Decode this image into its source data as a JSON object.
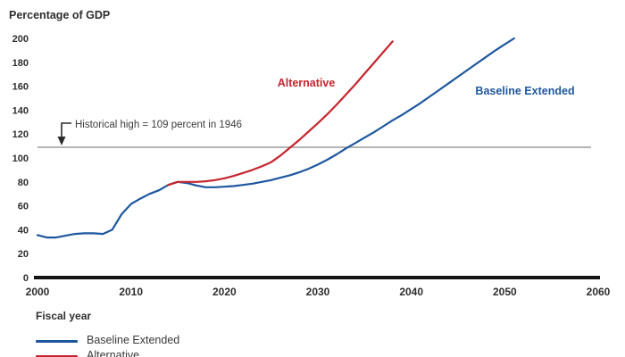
{
  "chart_data": {
    "type": "line",
    "title": "Percentage of GDP",
    "xlabel": "Fiscal year",
    "ylabel": "Percentage of GDP",
    "xlim": [
      2000,
      2060
    ],
    "ylim": [
      0,
      200
    ],
    "xticks": [
      2000,
      2010,
      2020,
      2030,
      2040,
      2050,
      2060
    ],
    "yticks": [
      0,
      20,
      40,
      60,
      80,
      100,
      120,
      140,
      160,
      180,
      200
    ],
    "grid": false,
    "legend_position": "bottom-left",
    "annotation": {
      "text": "Historical high = 109 percent in 1946",
      "y": 109
    },
    "reference_line": {
      "y": 109,
      "color": "#9b9b9b"
    },
    "series": [
      {
        "name": "Baseline Extended",
        "label_inline": "Baseline Extended",
        "color": "#1e579e",
        "points": [
          [
            2000,
            35.5
          ],
          [
            2001,
            33.5
          ],
          [
            2002,
            33.5
          ],
          [
            2003,
            35
          ],
          [
            2004,
            36.5
          ],
          [
            2005,
            37
          ],
          [
            2006,
            37
          ],
          [
            2007,
            36.5
          ],
          [
            2008,
            40
          ],
          [
            2009,
            53
          ],
          [
            2010,
            61.5
          ],
          [
            2011,
            66
          ],
          [
            2012,
            70
          ],
          [
            2013,
            73
          ],
          [
            2014,
            77.5
          ],
          [
            2015,
            80
          ],
          [
            2016,
            79
          ],
          [
            2017,
            77
          ],
          [
            2018,
            75.5
          ],
          [
            2019,
            75.5
          ],
          [
            2020,
            76
          ],
          [
            2021,
            76.5
          ],
          [
            2022,
            77.5
          ],
          [
            2023,
            78.5
          ],
          [
            2024,
            80
          ],
          [
            2025,
            81.5
          ],
          [
            2026,
            83.5
          ],
          [
            2027,
            85.5
          ],
          [
            2028,
            88
          ],
          [
            2029,
            91
          ],
          [
            2030,
            94.5
          ],
          [
            2031,
            98.5
          ],
          [
            2032,
            103
          ],
          [
            2033,
            108
          ],
          [
            2034,
            112.5
          ],
          [
            2035,
            117
          ],
          [
            2036,
            121.5
          ],
          [
            2037,
            126.5
          ],
          [
            2038,
            131.5
          ],
          [
            2039,
            136
          ],
          [
            2040,
            141
          ],
          [
            2041,
            146
          ],
          [
            2042,
            151.5
          ],
          [
            2043,
            157
          ],
          [
            2044,
            162.5
          ],
          [
            2045,
            168
          ],
          [
            2046,
            173.5
          ],
          [
            2047,
            179
          ],
          [
            2048,
            184.5
          ],
          [
            2049,
            190
          ],
          [
            2050,
            195
          ],
          [
            2051,
            200
          ]
        ]
      },
      {
        "name": "Alternative",
        "label_inline": "Alternative",
        "color": "#c4262e",
        "points": [
          [
            2014,
            77.5
          ],
          [
            2015,
            80
          ],
          [
            2016,
            80
          ],
          [
            2017,
            80
          ],
          [
            2018,
            80.5
          ],
          [
            2019,
            81.5
          ],
          [
            2020,
            83
          ],
          [
            2021,
            85
          ],
          [
            2022,
            87.5
          ],
          [
            2023,
            90
          ],
          [
            2024,
            93
          ],
          [
            2025,
            96.5
          ],
          [
            2026,
            102
          ],
          [
            2027,
            108.5
          ],
          [
            2028,
            115
          ],
          [
            2029,
            122
          ],
          [
            2030,
            129
          ],
          [
            2031,
            136.5
          ],
          [
            2032,
            144.5
          ],
          [
            2033,
            153
          ],
          [
            2034,
            161.5
          ],
          [
            2035,
            170.5
          ],
          [
            2036,
            179.5
          ],
          [
            2037,
            188.5
          ],
          [
            2038,
            197.5
          ]
        ]
      }
    ]
  },
  "legend": {
    "items": [
      {
        "label": "Baseline Extended",
        "color": "#1e579e"
      },
      {
        "label": "Alternative",
        "color": "#c4262e"
      }
    ]
  },
  "colors": {
    "axis": "#141414",
    "text": "#2e2e2e",
    "reference": "#9b9b9b",
    "background": "#ffffff"
  }
}
